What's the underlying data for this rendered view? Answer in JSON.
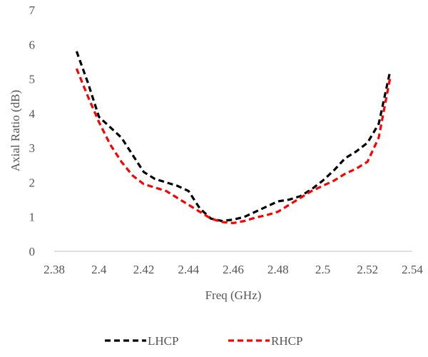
{
  "chart_data": {
    "type": "line",
    "title": "",
    "xlabel": "Freq (GHz)",
    "ylabel": "Axial Ratio (dB)",
    "xlim": [
      2.38,
      2.54
    ],
    "ylim": [
      0,
      7
    ],
    "x_ticks": [
      "2.38",
      "2.4",
      "2.42",
      "2.44",
      "2.46",
      "2.48",
      "2.5",
      "2.52",
      "2.54"
    ],
    "y_ticks": [
      "0",
      "1",
      "2",
      "3",
      "4",
      "5",
      "6",
      "7"
    ],
    "grid": false,
    "legend_position": "bottom",
    "series": [
      {
        "name": "LHCP",
        "color": "#000000",
        "line_style": "dashed",
        "x": [
          2.39,
          2.395,
          2.4,
          2.405,
          2.41,
          2.415,
          2.42,
          2.425,
          2.43,
          2.435,
          2.44,
          2.445,
          2.45,
          2.455,
          2.46,
          2.465,
          2.47,
          2.475,
          2.48,
          2.485,
          2.49,
          2.495,
          2.5,
          2.505,
          2.51,
          2.515,
          2.52,
          2.525,
          2.53
        ],
        "values": [
          5.8,
          4.9,
          3.9,
          3.6,
          3.3,
          2.8,
          2.3,
          2.1,
          2.0,
          1.9,
          1.75,
          1.25,
          0.95,
          0.88,
          0.92,
          1.0,
          1.15,
          1.3,
          1.45,
          1.5,
          1.6,
          1.8,
          2.05,
          2.35,
          2.7,
          2.9,
          3.15,
          3.7,
          5.2
        ]
      },
      {
        "name": "RHCP",
        "color": "#ff0000",
        "line_style": "dashed",
        "x": [
          2.39,
          2.395,
          2.4,
          2.405,
          2.41,
          2.415,
          2.42,
          2.425,
          2.43,
          2.435,
          2.44,
          2.445,
          2.45,
          2.455,
          2.46,
          2.465,
          2.47,
          2.475,
          2.48,
          2.485,
          2.49,
          2.495,
          2.5,
          2.505,
          2.51,
          2.515,
          2.52,
          2.525,
          2.53
        ],
        "values": [
          5.3,
          4.5,
          3.75,
          3.1,
          2.6,
          2.2,
          1.95,
          1.85,
          1.75,
          1.55,
          1.35,
          1.15,
          0.95,
          0.85,
          0.82,
          0.88,
          0.98,
          1.05,
          1.15,
          1.35,
          1.55,
          1.75,
          1.9,
          2.05,
          2.25,
          2.4,
          2.6,
          3.3,
          5.0
        ]
      }
    ]
  }
}
